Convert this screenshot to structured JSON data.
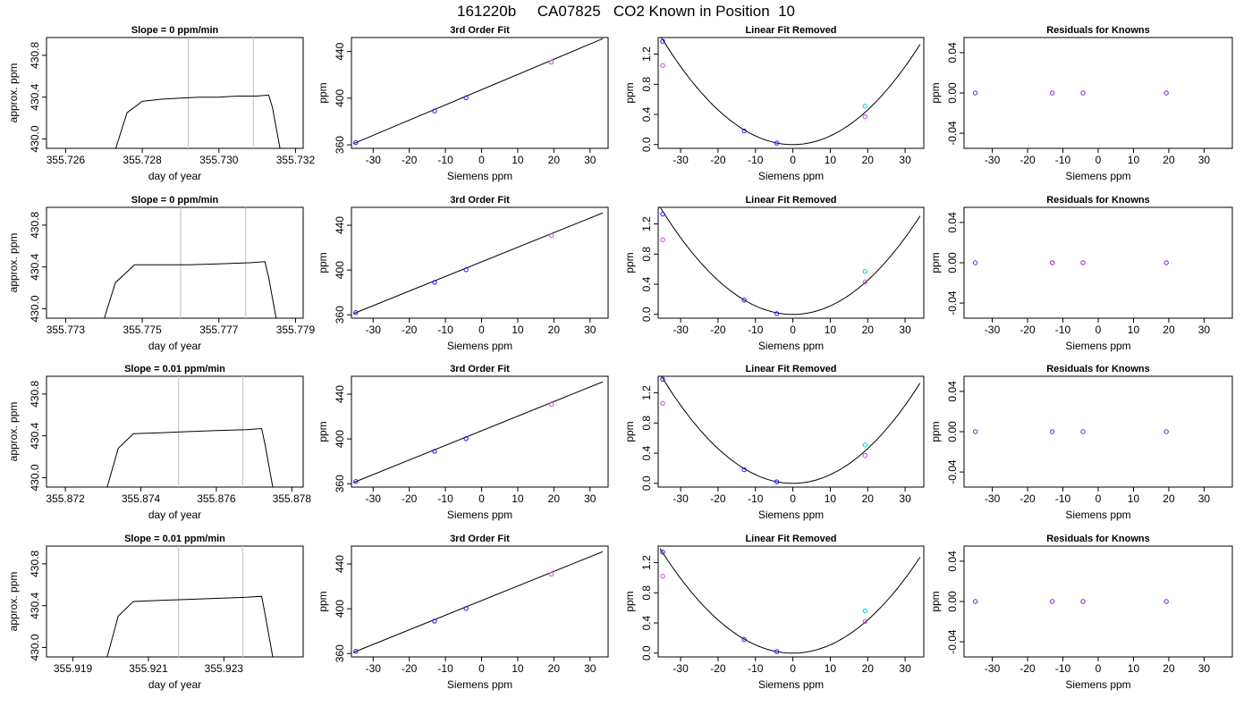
{
  "title": "161220b     CA07825   CO2 Known in Position  10",
  "colors": {
    "axis": "#000000",
    "trace": "#000000",
    "vline": "#c8c8c8",
    "blue": "#1a1aff",
    "cyan": "#00c8e6",
    "magenta": "#cc44ee",
    "purple": "#7a1fcc",
    "pink": "#ee82ee"
  },
  "chart_data": [
    {
      "type": "line",
      "panel": "trace",
      "title": "Slope =  0  ppm/min",
      "xlabel": "day of year",
      "ylabel": "approx. ppm",
      "xlim": [
        355.7255,
        355.7322
      ],
      "ylim": [
        429.91,
        430.97
      ],
      "xticks": [
        "355.726",
        "355.728",
        "355.730",
        "355.732"
      ],
      "xtick_values": [
        355.726,
        355.728,
        355.73,
        355.732
      ],
      "yticks": [
        "430.0",
        "430.4",
        "430.8"
      ],
      "ytick_values": [
        430.0,
        430.4,
        430.8
      ],
      "vlines": [
        355.7292,
        355.7309
      ],
      "x": [
        355.7273,
        355.7276,
        355.728,
        355.7285,
        355.729,
        355.7295,
        355.73,
        355.7305,
        355.731,
        355.7313,
        355.7314,
        355.7316
      ],
      "y": [
        429.9,
        430.25,
        430.36,
        430.38,
        430.39,
        430.4,
        430.4,
        430.41,
        430.41,
        430.42,
        430.3,
        429.9
      ]
    },
    {
      "type": "scatter",
      "panel": "fit",
      "title": "3rd Order Fit",
      "xlabel": "Siemens ppm",
      "ylabel": "ppm",
      "xlim": [
        -36,
        35
      ],
      "ylim": [
        357,
        452
      ],
      "xticks": [
        "-30",
        "-20",
        "-10",
        "0",
        "10",
        "20",
        "30"
      ],
      "xtick_values": [
        -30,
        -20,
        -10,
        0,
        10,
        20,
        30
      ],
      "yticks": [
        "360",
        "400",
        "440"
      ],
      "ytick_values": [
        360,
        400,
        440
      ],
      "line": {
        "x": [
          -35.5,
          33.5
        ],
        "y": [
          361.0,
          451.0
        ]
      },
      "series": [
        {
          "color": "blue",
          "x": [
            -34.8,
            -13.0,
            -4.3
          ],
          "y": [
            362.0,
            389.0,
            400.3
          ]
        },
        {
          "color": "magenta",
          "x": [
            19.3
          ],
          "y": [
            431.0
          ]
        }
      ]
    },
    {
      "type": "scatter",
      "panel": "curve",
      "title": "Linear Fit Removed",
      "xlabel": "Siemens ppm",
      "ylabel": "ppm",
      "xlim": [
        -36,
        35
      ],
      "ylim": [
        -0.05,
        1.42
      ],
      "xticks": [
        "-30",
        "-20",
        "-10",
        "0",
        "10",
        "20",
        "30"
      ],
      "xtick_values": [
        -30,
        -20,
        -10,
        0,
        10,
        20,
        30
      ],
      "yticks": [
        "0.0",
        "0.4",
        "0.8",
        "1.2"
      ],
      "ytick_values": [
        0.0,
        0.4,
        0.8,
        1.2
      ],
      "curve": {
        "a": 0.00115,
        "b": 0.0,
        "c": 0.0,
        "x0": -35.5,
        "x1": 34.0
      },
      "series": [
        {
          "color": "blue",
          "x": [
            -34.8,
            -13.0,
            -4.3
          ],
          "y": [
            1.37,
            0.18,
            0.02
          ]
        },
        {
          "color": "magenta",
          "x": [
            -34.8,
            19.3
          ],
          "y": [
            1.05,
            0.37
          ]
        },
        {
          "color": "cyan",
          "x": [
            19.3
          ],
          "y": [
            0.51
          ]
        }
      ]
    },
    {
      "type": "scatter",
      "panel": "resid",
      "title": "Residuals for Knowns",
      "xlabel": "Siemens ppm",
      "ylabel": "ppm",
      "xlim": [
        -38,
        38
      ],
      "ylim": [
        -0.055,
        0.055
      ],
      "xticks": [
        "-30",
        "-20",
        "-10",
        "0",
        "10",
        "20",
        "30"
      ],
      "xtick_values": [
        -30,
        -20,
        -10,
        0,
        10,
        20,
        30
      ],
      "yticks": [
        "-0.04",
        "0.00",
        "0.04"
      ],
      "ytick_values": [
        -0.04,
        0.0,
        0.04
      ],
      "series": [
        {
          "color": "purple",
          "x": [
            -34.8,
            -13.0,
            -4.3,
            19.3
          ],
          "y": [
            0.0,
            0.0,
            0.0,
            0.0
          ]
        }
      ]
    },
    {
      "type": "line",
      "panel": "trace",
      "title": "Slope =  0  ppm/min",
      "xlabel": "day of year",
      "ylabel": "approx. ppm",
      "xlim": [
        355.7725,
        355.7792
      ],
      "ylim": [
        429.91,
        430.97
      ],
      "xticks": [
        "355.773",
        "355.775",
        "355.777",
        "355.779"
      ],
      "xtick_values": [
        355.773,
        355.775,
        355.777,
        355.779
      ],
      "yticks": [
        "430.0",
        "430.4",
        "430.8"
      ],
      "ytick_values": [
        430.0,
        430.4,
        430.8
      ],
      "vlines": [
        355.776,
        355.7777
      ],
      "x": [
        355.774,
        355.7743,
        355.7748,
        355.7755,
        355.7762,
        355.777,
        355.7778,
        355.7782,
        355.7783,
        355.7785
      ],
      "y": [
        429.9,
        430.25,
        430.42,
        430.42,
        430.42,
        430.43,
        430.44,
        430.45,
        430.3,
        429.9
      ]
    },
    {
      "type": "scatter",
      "panel": "fit",
      "title": "3rd Order Fit",
      "xlabel": "Siemens ppm",
      "ylabel": "ppm",
      "xlim": [
        -36,
        35
      ],
      "ylim": [
        357,
        456
      ],
      "xticks": [
        "-30",
        "-20",
        "-10",
        "0",
        "10",
        "20",
        "30"
      ],
      "xtick_values": [
        -30,
        -20,
        -10,
        0,
        10,
        20,
        30
      ],
      "yticks": [
        "360",
        "400",
        "440"
      ],
      "ytick_values": [
        360,
        400,
        440
      ],
      "line": {
        "x": [
          -35.5,
          33.5
        ],
        "y": [
          361.0,
          451.0
        ]
      },
      "series": [
        {
          "color": "blue",
          "x": [
            -34.8,
            -13.0,
            -4.3
          ],
          "y": [
            362.0,
            389.0,
            400.3
          ]
        },
        {
          "color": "magenta",
          "x": [
            19.3
          ],
          "y": [
            431.0
          ]
        }
      ]
    },
    {
      "type": "scatter",
      "panel": "curve",
      "title": "Linear Fit Removed",
      "xlabel": "Siemens ppm",
      "ylabel": "ppm",
      "xlim": [
        -36,
        35
      ],
      "ylim": [
        -0.05,
        1.42
      ],
      "xticks": [
        "-30",
        "-20",
        "-10",
        "0",
        "10",
        "20",
        "30"
      ],
      "xtick_values": [
        -30,
        -20,
        -10,
        0,
        10,
        20,
        30
      ],
      "yticks": [
        "0.0",
        "0.4",
        "0.8",
        "1.2"
      ],
      "ytick_values": [
        0.0,
        0.4,
        0.8,
        1.2
      ],
      "curve": {
        "a": 0.00113,
        "b": 0.0,
        "c": 0.0,
        "x0": -35.5,
        "x1": 34.0
      },
      "series": [
        {
          "color": "blue",
          "x": [
            -34.8,
            -13.0,
            -4.3
          ],
          "y": [
            1.33,
            0.19,
            0.01
          ]
        },
        {
          "color": "magenta",
          "x": [
            -34.8,
            19.3
          ],
          "y": [
            0.99,
            0.43
          ]
        },
        {
          "color": "cyan",
          "x": [
            19.3
          ],
          "y": [
            0.57
          ]
        }
      ]
    },
    {
      "type": "scatter",
      "panel": "resid",
      "title": "Residuals for Knowns",
      "xlabel": "Siemens ppm",
      "ylabel": "ppm",
      "xlim": [
        -38,
        38
      ],
      "ylim": [
        -0.055,
        0.055
      ],
      "xticks": [
        "-30",
        "-20",
        "-10",
        "0",
        "10",
        "20",
        "30"
      ],
      "xtick_values": [
        -30,
        -20,
        -10,
        0,
        10,
        20,
        30
      ],
      "yticks": [
        "-0.04",
        "0.00",
        "0.04"
      ],
      "ytick_values": [
        -0.04,
        0.0,
        0.04
      ],
      "series": [
        {
          "color": "purple",
          "x": [
            -34.8,
            -13.0,
            -4.3,
            19.3
          ],
          "y": [
            0.0,
            0.0,
            0.0,
            0.0
          ]
        }
      ]
    },
    {
      "type": "line",
      "panel": "trace",
      "title": "Slope =  0.01  ppm/min",
      "xlabel": "day of year",
      "ylabel": "approx. ppm",
      "xlim": [
        355.8715,
        355.8783
      ],
      "ylim": [
        429.91,
        430.97
      ],
      "xticks": [
        "355.872",
        "355.874",
        "355.876",
        "355.878"
      ],
      "xtick_values": [
        355.872,
        355.874,
        355.876,
        355.878
      ],
      "yticks": [
        "430.0",
        "430.4",
        "430.8"
      ],
      "ytick_values": [
        430.0,
        430.4,
        430.8
      ],
      "vlines": [
        355.875,
        355.8767
      ],
      "x": [
        355.8731,
        355.8734,
        355.8738,
        355.8745,
        355.8752,
        355.876,
        355.8768,
        355.8772,
        355.8773,
        355.8775
      ],
      "y": [
        429.9,
        430.28,
        430.42,
        430.43,
        430.44,
        430.45,
        430.46,
        430.47,
        430.3,
        429.9
      ]
    },
    {
      "type": "scatter",
      "panel": "fit",
      "title": "3rd Order Fit",
      "xlabel": "Siemens ppm",
      "ylabel": "ppm",
      "xlim": [
        -36,
        35
      ],
      "ylim": [
        357,
        456
      ],
      "xticks": [
        "-30",
        "-20",
        "-10",
        "0",
        "10",
        "20",
        "30"
      ],
      "xtick_values": [
        -30,
        -20,
        -10,
        0,
        10,
        20,
        30
      ],
      "yticks": [
        "360",
        "400",
        "440"
      ],
      "ytick_values": [
        360,
        400,
        440
      ],
      "line": {
        "x": [
          -35.5,
          33.5
        ],
        "y": [
          361.0,
          451.0
        ]
      },
      "series": [
        {
          "color": "blue",
          "x": [
            -34.8,
            -13.0,
            -4.3
          ],
          "y": [
            362.0,
            389.0,
            400.3
          ]
        },
        {
          "color": "magenta",
          "x": [
            19.3
          ],
          "y": [
            431.0
          ]
        }
      ]
    },
    {
      "type": "scatter",
      "panel": "curve",
      "title": "Linear Fit Removed",
      "xlabel": "Siemens ppm",
      "ylabel": "ppm",
      "xlim": [
        -36,
        35
      ],
      "ylim": [
        -0.05,
        1.42
      ],
      "xticks": [
        "-30",
        "-20",
        "-10",
        "0",
        "10",
        "20",
        "30"
      ],
      "xtick_values": [
        -30,
        -20,
        -10,
        0,
        10,
        20,
        30
      ],
      "yticks": [
        "0.0",
        "0.4",
        "0.8",
        "1.2"
      ],
      "ytick_values": [
        0.0,
        0.4,
        0.8,
        1.2
      ],
      "curve": {
        "a": 0.00115,
        "b": 0.0,
        "c": 0.0,
        "x0": -35.5,
        "x1": 34.0
      },
      "series": [
        {
          "color": "blue",
          "x": [
            -34.8,
            -13.0,
            -4.3
          ],
          "y": [
            1.38,
            0.18,
            0.02
          ]
        },
        {
          "color": "magenta",
          "x": [
            -34.8,
            19.3
          ],
          "y": [
            1.06,
            0.37
          ]
        },
        {
          "color": "cyan",
          "x": [
            19.3
          ],
          "y": [
            0.51
          ]
        }
      ]
    },
    {
      "type": "scatter",
      "panel": "resid",
      "title": "Residuals for Knowns",
      "xlabel": "Siemens ppm",
      "ylabel": "ppm",
      "xlim": [
        -38,
        38
      ],
      "ylim": [
        -0.055,
        0.055
      ],
      "xticks": [
        "-30",
        "-20",
        "-10",
        "0",
        "10",
        "20",
        "30"
      ],
      "xtick_values": [
        -30,
        -20,
        -10,
        0,
        10,
        20,
        30
      ],
      "yticks": [
        "-0.04",
        "0.00",
        "0.04"
      ],
      "ytick_values": [
        -0.04,
        0.0,
        0.04
      ],
      "series": [
        {
          "color": "purple",
          "x": [
            -34.8,
            -13.0,
            -4.3,
            19.3
          ],
          "y": [
            0.0,
            0.0,
            0.0,
            0.0
          ]
        }
      ]
    },
    {
      "type": "line",
      "panel": "trace",
      "title": "Slope =  0.01  ppm/min",
      "xlabel": "day of year",
      "ylabel": "approx. ppm",
      "xlim": [
        355.9183,
        355.9251
      ],
      "ylim": [
        429.91,
        430.97
      ],
      "xticks": [
        "355.919",
        "355.921",
        "355.923"
      ],
      "xtick_values": [
        355.919,
        355.921,
        355.923
      ],
      "yticks": [
        "430.0",
        "430.4",
        "430.8"
      ],
      "ytick_values": [
        430.0,
        430.4,
        430.8
      ],
      "vlines": [
        355.9218,
        355.9235
      ],
      "x": [
        355.9199,
        355.9202,
        355.9206,
        355.9213,
        355.922,
        355.9228,
        355.9236,
        355.924,
        355.9241,
        355.9243
      ],
      "y": [
        429.9,
        430.3,
        430.44,
        430.45,
        430.46,
        430.47,
        430.48,
        430.49,
        430.3,
        429.9
      ]
    },
    {
      "type": "scatter",
      "panel": "fit",
      "title": "3rd Order Fit",
      "xlabel": "Siemens ppm",
      "ylabel": "ppm",
      "xlim": [
        -36,
        35
      ],
      "ylim": [
        357,
        456
      ],
      "xticks": [
        "-30",
        "-20",
        "-10",
        "0",
        "10",
        "20",
        "30"
      ],
      "xtick_values": [
        -30,
        -20,
        -10,
        0,
        10,
        20,
        30
      ],
      "yticks": [
        "360",
        "400",
        "440"
      ],
      "ytick_values": [
        360,
        400,
        440
      ],
      "line": {
        "x": [
          -35.5,
          33.5
        ],
        "y": [
          361.0,
          451.0
        ]
      },
      "series": [
        {
          "color": "blue",
          "x": [
            -34.8,
            -13.0,
            -4.3
          ],
          "y": [
            362.0,
            389.0,
            400.3
          ]
        },
        {
          "color": "magenta",
          "x": [
            19.3
          ],
          "y": [
            431.0
          ]
        }
      ]
    },
    {
      "type": "scatter",
      "panel": "curve",
      "title": "Linear Fit Removed",
      "xlabel": "Siemens ppm",
      "ylabel": "ppm",
      "xlim": [
        -36,
        35
      ],
      "ylim": [
        -0.05,
        1.42
      ],
      "xticks": [
        "-30",
        "-20",
        "-10",
        "0",
        "10",
        "20",
        "30"
      ],
      "xtick_values": [
        -30,
        -20,
        -10,
        0,
        10,
        20,
        30
      ],
      "yticks": [
        "0.0",
        "0.4",
        "0.8",
        "1.2"
      ],
      "ytick_values": [
        0.0,
        0.4,
        0.8,
        1.2
      ],
      "curve": {
        "a": 0.0011,
        "b": 0.0,
        "c": 0.0,
        "x0": -35.5,
        "x1": 34.0
      },
      "series": [
        {
          "color": "blue",
          "x": [
            -34.8,
            -13.0,
            -4.3
          ],
          "y": [
            1.34,
            0.18,
            0.02
          ]
        },
        {
          "color": "magenta",
          "x": [
            -34.8,
            19.3
          ],
          "y": [
            1.02,
            0.42
          ]
        },
        {
          "color": "cyan",
          "x": [
            19.3
          ],
          "y": [
            0.56
          ]
        }
      ]
    },
    {
      "type": "scatter",
      "panel": "resid",
      "title": "Residuals for Knowns",
      "xlabel": "Siemens ppm",
      "ylabel": "ppm",
      "xlim": [
        -38,
        38
      ],
      "ylim": [
        -0.055,
        0.055
      ],
      "xticks": [
        "-30",
        "-20",
        "-10",
        "0",
        "10",
        "20",
        "30"
      ],
      "xtick_values": [
        -30,
        -20,
        -10,
        0,
        10,
        20,
        30
      ],
      "yticks": [
        "-0.04",
        "0.00",
        "0.04"
      ],
      "ytick_values": [
        -0.04,
        0.0,
        0.04
      ],
      "series": [
        {
          "color": "purple",
          "x": [
            -34.8,
            -13.0,
            -4.3,
            19.3
          ],
          "y": [
            0.0,
            0.0,
            0.0,
            0.0
          ]
        }
      ]
    }
  ]
}
